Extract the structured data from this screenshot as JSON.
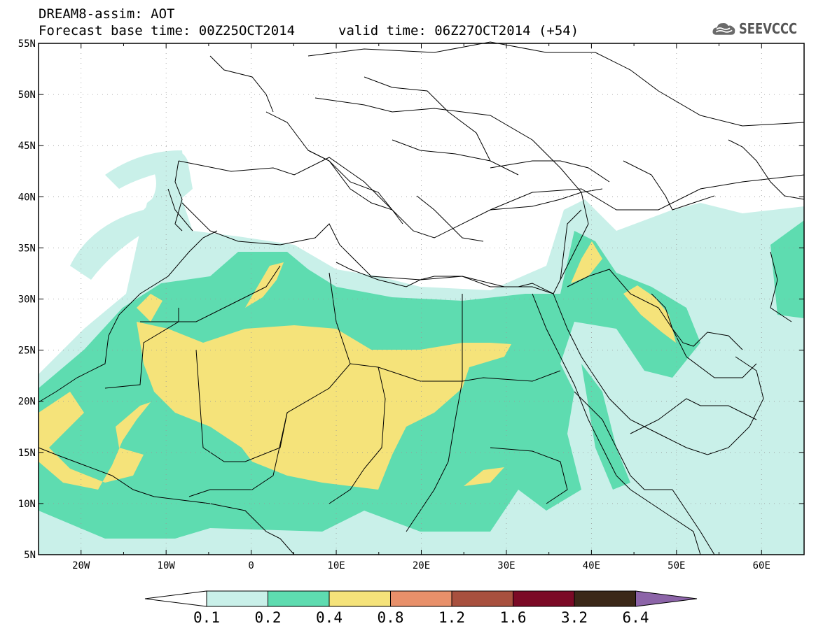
{
  "header": {
    "title": "DREAM8-assim: AOT",
    "base_time": "Forecast base time: 00Z25OCT2014",
    "valid_time": "valid time: 06Z27OCT2014 (+54)"
  },
  "logo": {
    "icon": "cloud-icon",
    "text": "SEEVCCC"
  },
  "map": {
    "lon_range": [
      -25,
      65
    ],
    "lat_range": [
      5,
      55
    ],
    "lat_labels": [
      "55N",
      "50N",
      "45N",
      "40N",
      "35N",
      "30N",
      "25N",
      "20N",
      "15N",
      "10N",
      "5N"
    ],
    "lon_labels": [
      "20W",
      "10W",
      "0",
      "10E",
      "20E",
      "30E",
      "40E",
      "50E",
      "60E"
    ],
    "field": "AOT"
  },
  "colorbar": {
    "colors": [
      "#ffffff",
      "#c9f0e9",
      "#5edcb0",
      "#f5e37a",
      "#e8906a",
      "#a8503e",
      "#7b0a26",
      "#3b2818",
      "#8c64a8"
    ],
    "ticks": [
      "0.1",
      "0.2",
      "0.4",
      "0.8",
      "1.2",
      "1.6",
      "3.2",
      "6.4"
    ]
  }
}
